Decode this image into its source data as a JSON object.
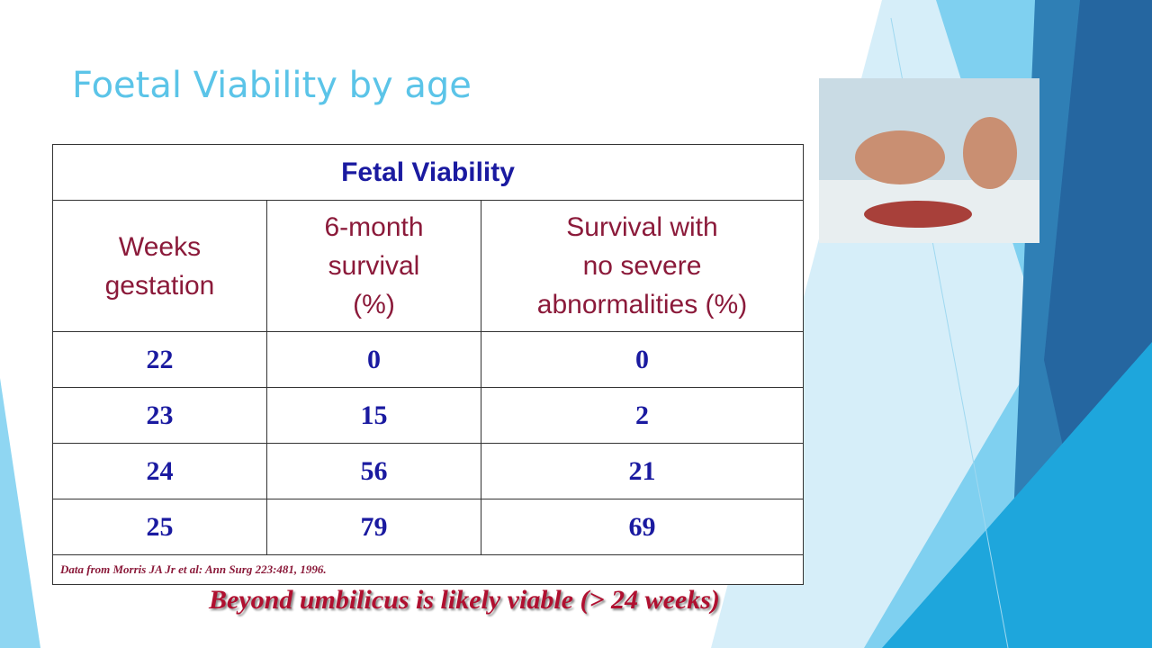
{
  "title": "Foetal Viability by age",
  "table": {
    "title": "Fetal Viability",
    "headers": [
      [
        "Weeks",
        "gestation"
      ],
      [
        "6-month",
        "survival",
        "(%)"
      ],
      [
        "Survival with",
        "no severe",
        "abnormalities (%)"
      ]
    ],
    "rows": [
      [
        22,
        0,
        0
      ],
      [
        23,
        15,
        2
      ],
      [
        24,
        56,
        21
      ],
      [
        25,
        79,
        69
      ]
    ],
    "footnote": "Data from Morris JA Jr et al: Ann Surg 223:481, 1996."
  },
  "caption": "Beyond umbilicus is likely viable (> 24 weeks)"
}
